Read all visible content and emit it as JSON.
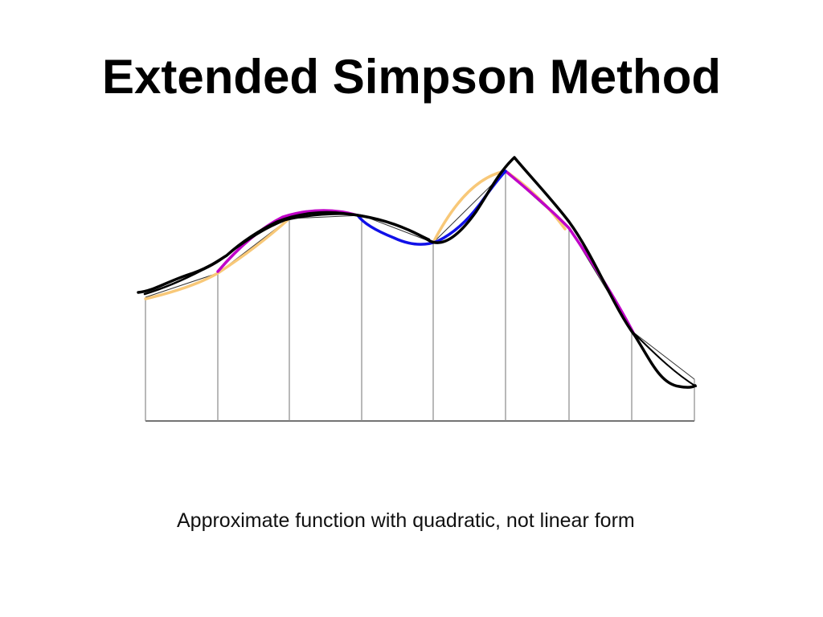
{
  "title": "Extended Simpson Method",
  "caption": "Approximate function with quadratic, not linear form",
  "colors": {
    "function_curve": "#000000",
    "segment_lines": "#000000",
    "grid_lines": "#8a8a8a",
    "quadratic_blue": "#1010e8",
    "quadratic_magenta": "#c000c8",
    "quadratic_orange": "#f8c878"
  }
}
